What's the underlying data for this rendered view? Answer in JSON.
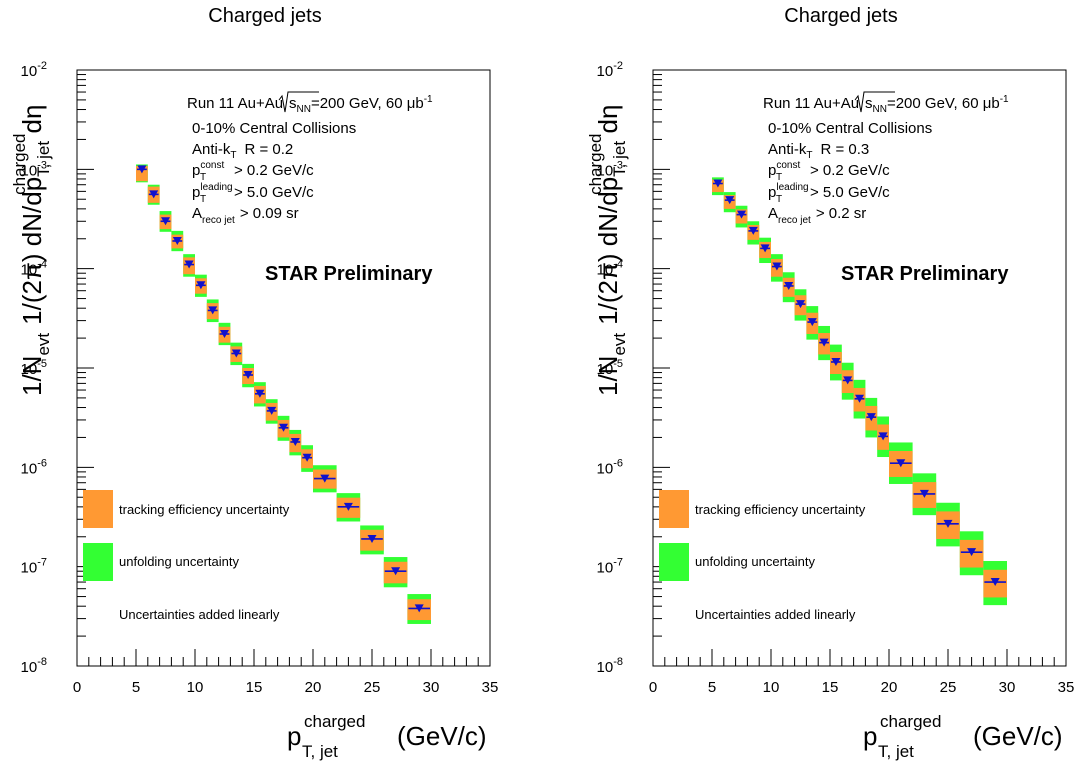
{
  "colors": {
    "tracking": "#ff9933",
    "unfolding": "#33ff33",
    "marker": "#1111cc",
    "frame": "#000000"
  },
  "chart_data": [
    {
      "type": "scatter",
      "title": "Charged jets",
      "xlabel": "p_T, jet^charged (GeV/c)",
      "ylabel": "1/N_evt 1/(2π) dN/dp_T, jet^charged dη",
      "xlim": [
        0,
        35
      ],
      "ylim": [
        1e-08,
        0.01
      ],
      "yscale": "log",
      "grid": false,
      "xticks": [
        "0",
        "5",
        "10",
        "15",
        "20",
        "25",
        "30",
        "35"
      ],
      "yticks": [
        "10",
        "10",
        "10",
        "10",
        "10",
        "10",
        "10"
      ],
      "ytick_exponents": [
        "-8",
        "-7",
        "-6",
        "-5",
        "-4",
        "-3",
        "-2"
      ],
      "info": {
        "line1_pre": "Run 11 Au+Au ",
        "line1_sqrt": "s",
        "line1_sqrt_sub": "NN",
        "line1_post": "=200 GeV, 60 μb",
        "line1_sup": "-1",
        "line2": "0-10% Central Collisions",
        "line3_a": "Anti-k",
        "line3_sub": "T",
        "line3_b": "R = 0.2",
        "line4_p": "p",
        "line4_sub": "T",
        "line4_sup": "const",
        "line4_rest": "> 0.2 GeV/c",
        "line5_p": "p",
        "line5_sub": "T",
        "line5_sup": "leading",
        "line5_rest": "> 5.0 GeV/c",
        "line6_a": "A",
        "line6_sub": "reco jet",
        "line6_rest": "> 0.09 sr"
      },
      "annotation": "STAR Preliminary",
      "legend": {
        "position": "bottom-left",
        "tracking": "tracking efficiency uncertainty",
        "unfolding": "unfolding uncertainty",
        "note": "Uncertainties added linearly"
      },
      "axis_label": {
        "y_pre": "1/N",
        "y_evt": "evt",
        "y_mid": "1/(2π) dN/dp",
        "y_sub": "T, jet",
        "y_sup": "charged",
        "y_end": "dη",
        "x_p": "p",
        "x_sub": "T, jet",
        "x_sup": "charged",
        "x_unit": "(GeV/c)"
      },
      "series": [
        {
          "name": "",
          "x": [
            5.5,
            6.5,
            7.5,
            8.5,
            9.5,
            10.5,
            11.5,
            12.5,
            13.5,
            14.5,
            15.5,
            16.5,
            17.5,
            18.5,
            19.5,
            21.0,
            23.0,
            25.0,
            27.0,
            29.0
          ],
          "xerr": [
            0.5,
            0.5,
            0.5,
            0.5,
            0.5,
            0.5,
            0.5,
            0.5,
            0.5,
            0.5,
            0.5,
            0.5,
            0.5,
            0.5,
            0.5,
            1.0,
            1.0,
            1.0,
            1.0,
            1.0
          ],
          "y": [
            0.001,
            0.00056,
            0.0003,
            0.00019,
            0.00011,
            6.8e-05,
            3.8e-05,
            2.2e-05,
            1.4e-05,
            8.5e-06,
            5.5e-06,
            3.7e-06,
            2.5e-06,
            1.8e-06,
            1.25e-06,
            7.7e-07,
            4e-07,
            1.9e-07,
            9e-08,
            3.8e-08
          ],
          "tracking_lo": [
            0.00076,
            0.00046,
            0.00025,
            0.00016,
            8.8e-05,
            5.6e-05,
            3.1e-05,
            1.8e-05,
            1.15e-05,
            6.9e-06,
            4.4e-06,
            2.95e-06,
            2e-06,
            1.42e-06,
            9.8e-07,
            6.1e-07,
            3.1e-07,
            1.45e-07,
            6.8e-08,
            2.9e-08
          ],
          "tracking_hi": [
            0.00108,
            0.00067,
            0.00035,
            0.00022,
            0.00013,
            8e-05,
            4.5e-05,
            2.6e-05,
            1.65e-05,
            1e-05,
            6.6e-06,
            4.45e-06,
            3e-06,
            2.17e-06,
            1.52e-06,
            9.5e-07,
            4.95e-07,
            2.35e-07,
            1.12e-07,
            4.7e-08
          ],
          "unfolding_lo": [
            0.00074,
            0.00044,
            0.000235,
            0.00015,
            8.3e-05,
            5.2e-05,
            2.9e-05,
            1.7e-05,
            1.07e-05,
            6.4e-06,
            4.1e-06,
            2.75e-06,
            1.85e-06,
            1.32e-06,
            9e-07,
            5.6e-07,
            2.85e-07,
            1.33e-07,
            6.2e-08,
            2.65e-08
          ],
          "unfolding_hi": [
            0.00112,
            0.0007,
            0.00038,
            0.00024,
            0.00014,
            8.7e-05,
            4.9e-05,
            2.85e-05,
            1.8e-05,
            1.1e-05,
            7.2e-06,
            4.85e-06,
            3.3e-06,
            2.38e-06,
            1.67e-06,
            1.05e-06,
            5.5e-07,
            2.6e-07,
            1.25e-07,
            5.3e-08
          ]
        }
      ]
    },
    {
      "type": "scatter",
      "title": "Charged jets",
      "xlabel": "p_T, jet^charged (GeV/c)",
      "ylabel": "1/N_evt 1/(2π) dN/dp_T, jet^charged dη",
      "xlim": [
        0,
        35
      ],
      "ylim": [
        1e-08,
        0.01
      ],
      "yscale": "log",
      "grid": false,
      "xticks": [
        "0",
        "5",
        "10",
        "15",
        "20",
        "25",
        "30",
        "35"
      ],
      "yticks": [
        "10",
        "10",
        "10",
        "10",
        "10",
        "10",
        "10"
      ],
      "ytick_exponents": [
        "-8",
        "-7",
        "-6",
        "-5",
        "-4",
        "-3",
        "-2"
      ],
      "info": {
        "line1_pre": "Run 11 Au+Au ",
        "line1_sqrt": "s",
        "line1_sqrt_sub": "NN",
        "line1_post": "=200 GeV, 60 μb",
        "line1_sup": "-1",
        "line2": "0-10% Central Collisions",
        "line3_a": "Anti-k",
        "line3_sub": "T",
        "line3_b": "R = 0.3",
        "line4_p": "p",
        "line4_sub": "T",
        "line4_sup": "const",
        "line4_rest": "> 0.2 GeV/c",
        "line5_p": "p",
        "line5_sub": "T",
        "line5_sup": "leading",
        "line5_rest": "> 5.0 GeV/c",
        "line6_a": "A",
        "line6_sub": "reco jet",
        "line6_rest": "> 0.2 sr"
      },
      "annotation": "STAR Preliminary",
      "legend": {
        "position": "bottom-left",
        "tracking": "tracking efficiency uncertainty",
        "unfolding": "unfolding uncertainty",
        "note": "Uncertainties added linearly"
      },
      "axis_label": {
        "y_pre": "1/N",
        "y_evt": "evt",
        "y_mid": "1/(2π) dN/dp",
        "y_sub": "T, jet",
        "y_sup": "charged",
        "y_end": "dη",
        "x_p": "p",
        "x_sub": "T, jet",
        "x_sup": "charged",
        "x_unit": "(GeV/c)"
      },
      "series": [
        {
          "name": "",
          "x": [
            5.5,
            6.5,
            7.5,
            8.5,
            9.5,
            10.5,
            11.5,
            12.5,
            13.5,
            14.5,
            15.5,
            16.5,
            17.5,
            18.5,
            19.5,
            21.0,
            23.0,
            25.0,
            27.0,
            29.0
          ],
          "xerr": [
            0.5,
            0.5,
            0.5,
            0.5,
            0.5,
            0.5,
            0.5,
            0.5,
            0.5,
            0.5,
            0.5,
            0.5,
            0.5,
            0.5,
            0.5,
            1.0,
            1.0,
            1.0,
            1.0,
            1.0
          ],
          "y": [
            0.00072,
            0.00049,
            0.00035,
            0.00024,
            0.00016,
            0.000105,
            6.7e-05,
            4.4e-05,
            2.9e-05,
            1.8e-05,
            1.15e-05,
            7.5e-06,
            4.9e-06,
            3.2e-06,
            2.05e-06,
            1.1e-06,
            5.4e-07,
            2.7e-07,
            1.4e-07,
            7e-08
          ],
          "tracking_lo": [
            0.00059,
            0.0004,
            0.000285,
            0.000195,
            0.000128,
            8.3e-05,
            5.2e-05,
            3.4e-05,
            2.2e-05,
            1.37e-05,
            8.7e-06,
            5.6e-06,
            3.65e-06,
            2.35e-06,
            1.5e-06,
            8e-07,
            3.9e-07,
            1.9e-07,
            9.8e-08,
            4.9e-08
          ],
          "tracking_hi": [
            0.00079,
            0.00055,
            0.000395,
            0.000275,
            0.000186,
            0.000125,
            8.1e-05,
            5.4e-05,
            3.6e-05,
            2.25e-05,
            1.45e-05,
            9.5e-06,
            6.3e-06,
            4.15e-06,
            2.7e-06,
            1.46e-06,
            7.1e-07,
            3.6e-07,
            1.86e-07,
            9.3e-08
          ],
          "unfolding_lo": [
            0.00055,
            0.00037,
            0.00026,
            0.000175,
            0.000114,
            7.4e-05,
            4.6e-05,
            3e-05,
            1.93e-05,
            1.2e-05,
            7.5e-06,
            4.8e-06,
            3.1e-06,
            2e-06,
            1.27e-06,
            6.8e-07,
            3.3e-07,
            1.6e-07,
            8.2e-08,
            4.1e-08
          ],
          "unfolding_hi": [
            0.00083,
            0.00059,
            0.00043,
            0.0003,
            0.000205,
            0.00014,
            9.2e-05,
            6.2e-05,
            4.2e-05,
            2.65e-05,
            1.72e-05,
            1.13e-05,
            7.6e-06,
            5e-06,
            3.25e-06,
            1.78e-06,
            8.7e-07,
            4.4e-07,
            2.27e-07,
            1.14e-07
          ]
        }
      ]
    }
  ]
}
